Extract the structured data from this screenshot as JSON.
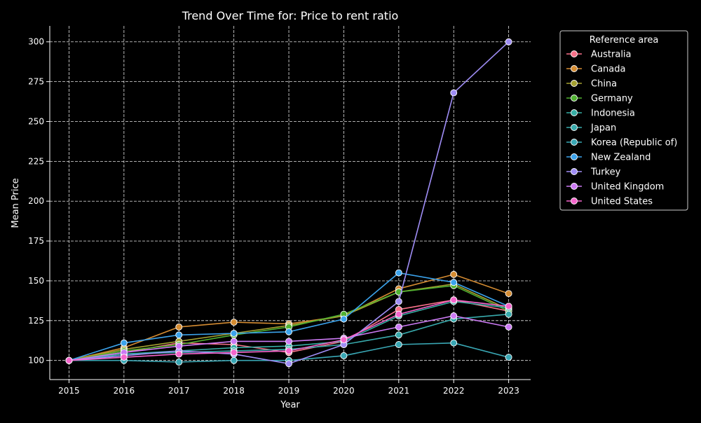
{
  "chart_data": {
    "type": "line",
    "title": "Trend Over Time for: Price to rent ratio",
    "xlabel": "Year",
    "ylabel": "Mean Price",
    "x": [
      2015,
      2016,
      2017,
      2018,
      2019,
      2020,
      2021,
      2022,
      2023
    ],
    "x_ticks": [
      "2015",
      "2016",
      "2017",
      "2018",
      "2019",
      "2020",
      "2021",
      "2022",
      "2023"
    ],
    "y_ticks": [
      "100",
      "125",
      "150",
      "175",
      "200",
      "225",
      "250",
      "275",
      "300"
    ],
    "xlim": [
      2014.65,
      2023.4
    ],
    "ylim": [
      88,
      310
    ],
    "grid": true,
    "legend_title": "Reference area",
    "legend_position": "outside-right",
    "series": [
      {
        "name": "Australia",
        "color": "#f77189",
        "values": [
          100,
          105,
          111,
          110,
          105,
          112,
          132,
          138,
          131
        ]
      },
      {
        "name": "Canada",
        "color": "#d58c32",
        "values": [
          100,
          108,
          121,
          124,
          123,
          128,
          145,
          154,
          142
        ]
      },
      {
        "name": "China",
        "color": "#a4a031",
        "values": [
          100,
          107,
          112,
          117,
          122,
          128,
          143,
          148,
          132
        ]
      },
      {
        "name": "Germany",
        "color": "#50b131",
        "values": [
          100,
          106,
          110,
          116,
          121,
          129,
          143,
          147,
          131
        ]
      },
      {
        "name": "Indonesia",
        "color": "#36ada4",
        "values": [
          100,
          104,
          106,
          108,
          109,
          112,
          128,
          137,
          133
        ]
      },
      {
        "name": "Japan",
        "color": "#38aaac",
        "values": [
          100,
          104,
          105,
          106,
          107,
          110,
          116,
          126,
          129
        ]
      },
      {
        "name": "Korea (Republic of)",
        "color": "#39a7b4",
        "values": [
          100,
          100,
          99,
          100,
          100,
          103,
          110,
          111,
          102
        ]
      },
      {
        "name": "New Zealand",
        "color": "#3ba3ec",
        "values": [
          100,
          111,
          116,
          117,
          118,
          126,
          155,
          149,
          134
        ]
      },
      {
        "name": "Turkey",
        "color": "#9f8df5",
        "values": [
          100,
          103,
          106,
          104,
          98,
          110,
          137,
          268,
          300
        ]
      },
      {
        "name": "United Kingdom",
        "color": "#cc7af4",
        "values": [
          100,
          105,
          109,
          112,
          112,
          114,
          121,
          128,
          121
        ]
      },
      {
        "name": "United States",
        "color": "#f565cc",
        "values": [
          100,
          102,
          104,
          105,
          106,
          113,
          129,
          138,
          134
        ]
      }
    ]
  }
}
